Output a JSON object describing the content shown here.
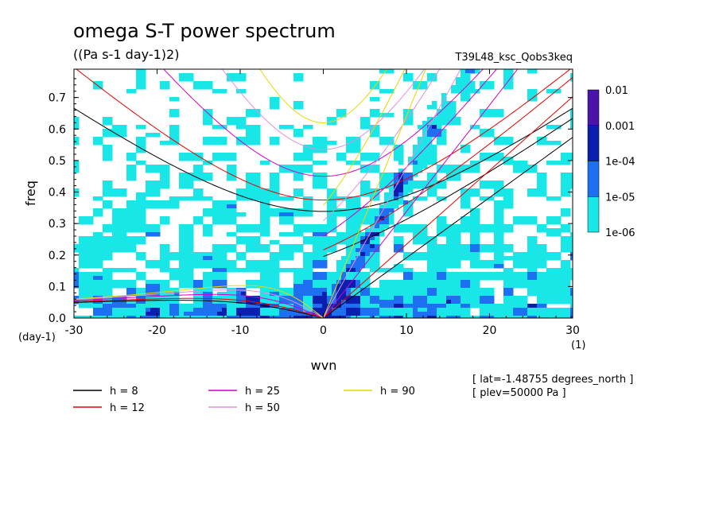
{
  "chart_data": {
    "type": "heatmap",
    "title": "omega S-T power spectrum",
    "subtitle": "((Pa s-1 day-1)2)",
    "run_label": "T39L48_ksc_Qobs3keq",
    "xlabel": "wvn",
    "ylabel": "freq",
    "x_unit": "(1)",
    "y_unit": "(day-1)",
    "xlim": [
      -30,
      30
    ],
    "ylim": [
      0,
      0.79
    ],
    "x_ticks": [
      -30,
      -20,
      -10,
      0,
      10,
      20,
      30
    ],
    "x_tick_labels": [
      "-30",
      "-20",
      "-10",
      "0",
      "10",
      "20",
      "30"
    ],
    "y_ticks": [
      0,
      0.1,
      0.2,
      0.3,
      0.4,
      0.5,
      0.6,
      0.7
    ],
    "y_tick_labels": [
      "0.0",
      "0.1",
      "0.2",
      "0.3",
      "0.4",
      "0.5",
      "0.6",
      "0.7"
    ],
    "colorbar": {
      "levels": [
        "0.01",
        "0.001",
        "1e-04",
        "1e-05",
        "1e-06"
      ],
      "colors": [
        "#4b14a8",
        "#0a1fb0",
        "#1f6ff2",
        "#19e6e6"
      ]
    },
    "dispersion_curves": [
      {
        "name": "h =  8",
        "h": 8,
        "color": "#000000"
      },
      {
        "name": "h = 12",
        "h": 12,
        "color": "#e60000"
      },
      {
        "name": "h = 25",
        "h": 25,
        "color": "#d400c8"
      },
      {
        "name": "h = 50",
        "h": 50,
        "color": "#e090e0"
      },
      {
        "name": "h = 90",
        "h": 90,
        "color": "#e8d800"
      }
    ],
    "annotations": [
      "[ lat=-1.48755 degrees_north ]",
      "[ plev=50000 Pa ]"
    ]
  }
}
